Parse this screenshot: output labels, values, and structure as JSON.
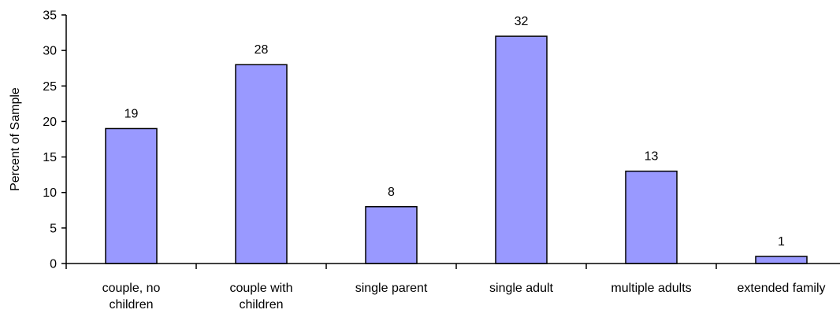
{
  "chart_data": {
    "type": "bar",
    "title": "",
    "xlabel": "",
    "ylabel": "Percent of Sample",
    "categories": [
      [
        "couple, no",
        "children"
      ],
      [
        "couple with",
        "children"
      ],
      [
        "single parent"
      ],
      [
        "single adult"
      ],
      [
        "multiple adults"
      ],
      [
        "extended family"
      ]
    ],
    "values": [
      19,
      28,
      8,
      32,
      13,
      1
    ],
    "ylim": [
      0,
      35
    ],
    "yticks": [
      0,
      5,
      10,
      15,
      20,
      25,
      30,
      35
    ],
    "data_labels": true,
    "grid": false,
    "legend": "none",
    "colors": {
      "bar_fill": "#9999ff",
      "bar_stroke": "#000000",
      "axis": "#000000"
    }
  }
}
